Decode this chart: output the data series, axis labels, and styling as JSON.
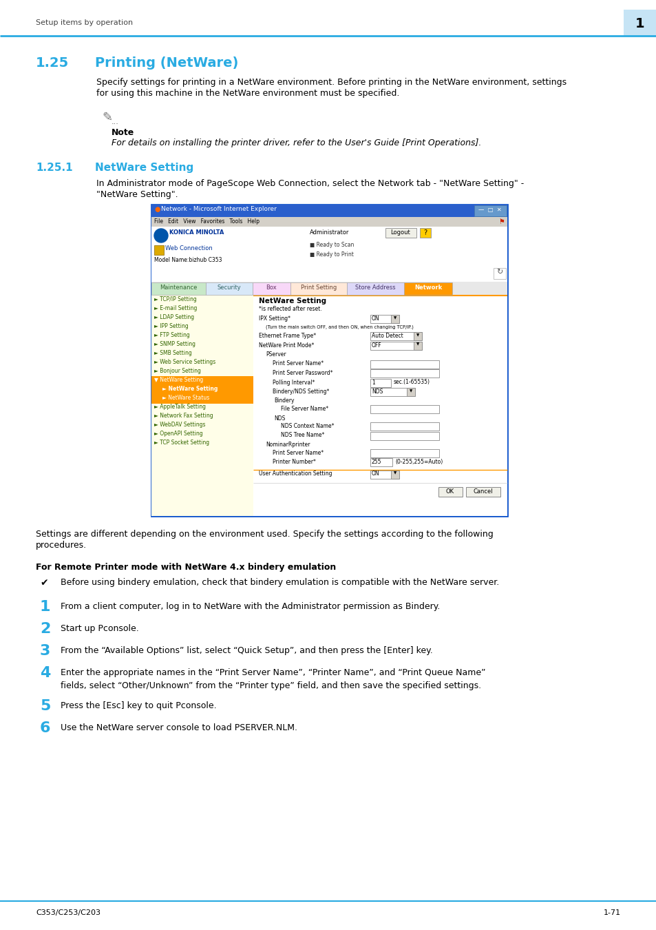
{
  "page_bg": "#ffffff",
  "header_text": "Setup items by operation",
  "header_text_color": "#444444",
  "header_line_color": "#29abe2",
  "header_number": "1",
  "header_number_bg": "#c6e4f5",
  "section_num": "1.25",
  "section_name": "Printing (NetWare)",
  "section_title_color": "#29abe2",
  "body_text_1a": "Specify settings for printing in a NetWare environment. Before printing in the NetWare environment, settings",
  "body_text_1b": "for using this machine in the NetWare environment must be specified.",
  "note_label": "Note",
  "note_text": "For details on installing the printer driver, refer to the User's Guide [Print Operations].",
  "subsection_num": "1.25.1",
  "subsection_name": "NetWare Setting",
  "subsection_title_color": "#29abe2",
  "body_text_2a": "In Administrator mode of PageScope Web Connection, select the Network tab - \"NetWare Setting\" -",
  "body_text_2b": "\"NetWare Setting\".",
  "below_screenshot_a": "Settings are different depending on the environment used. Specify the settings according to the following",
  "below_screenshot_b": "procedures.",
  "bold_heading": "For Remote Printer mode with NetWare 4.x bindery emulation",
  "checkmark_item": "Before using bindery emulation, check that bindery emulation is compatible with the NetWare server.",
  "numbered_items": [
    {
      "num": "1",
      "text": "From a client computer, log in to NetWare with the Administrator permission as Bindery.",
      "lines": 1
    },
    {
      "num": "2",
      "text": "Start up Pconsole.",
      "lines": 1
    },
    {
      "num": "3",
      "text": "From the “Available Options” list, select “Quick Setup”, and then press the [Enter] key.",
      "lines": 1
    },
    {
      "num": "4",
      "text": "Enter the appropriate names in the “Print Server Name”, “Printer Name”, and “Print Queue Name”\nfields, select “Other/Unknown” from the “Printer type” field, and then save the specified settings.",
      "lines": 2
    },
    {
      "num": "5",
      "text": "Press the [Esc] key to quit Pconsole.",
      "lines": 1
    },
    {
      "num": "6",
      "text": "Use the NetWare server console to load PSERVER.NLM.",
      "lines": 1
    }
  ],
  "footer_left": "C353/C253/C203",
  "footer_right": "1-71",
  "footer_line_color": "#29abe2",
  "text_color": "#000000",
  "number_color": "#29abe2"
}
